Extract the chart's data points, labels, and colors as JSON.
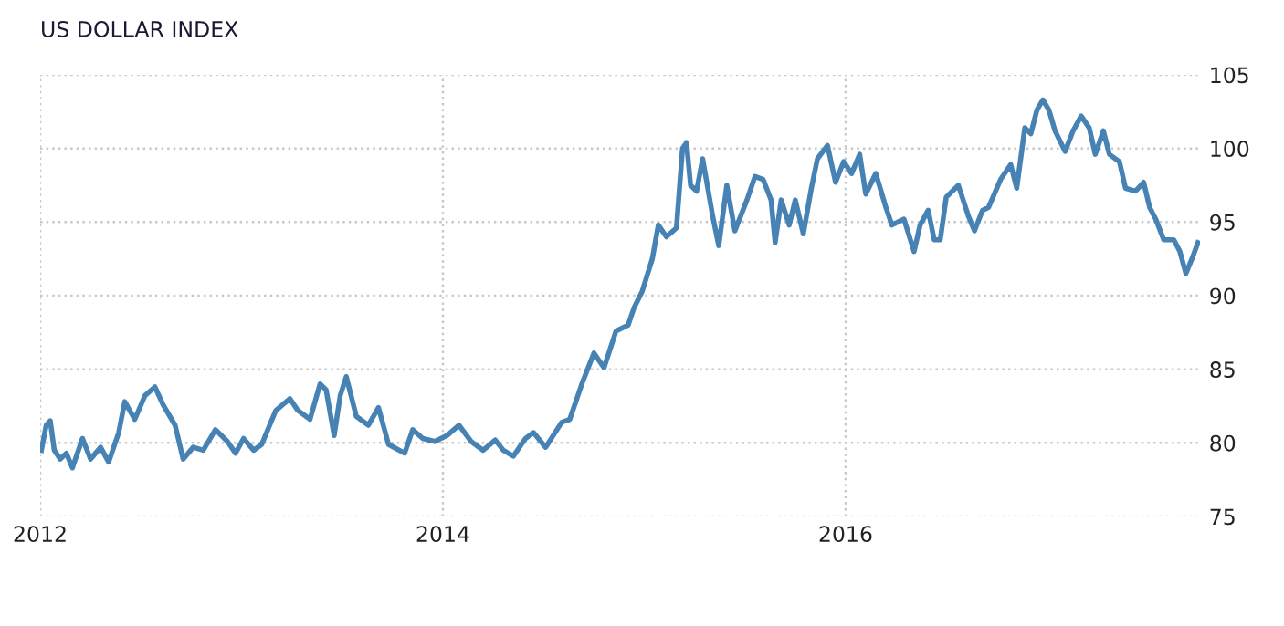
{
  "chart_data": {
    "type": "line",
    "title": "US DOLLAR INDEX",
    "xlim": [
      2012,
      2017.76
    ],
    "xticks": [
      2012,
      2014,
      2016
    ],
    "ylim": [
      75,
      105
    ],
    "yticks": [
      75,
      80,
      85,
      90,
      95,
      100,
      105
    ],
    "grid": true,
    "line_style": "solid",
    "series": [
      {
        "color": "#4682b4",
        "x": [
          2012.006,
          2012.03,
          2012.05,
          2012.07,
          2012.1,
          2012.13,
          2012.16,
          2012.21,
          2012.25,
          2012.3,
          2012.34,
          2012.39,
          2012.42,
          2012.47,
          2012.52,
          2012.57,
          2012.61,
          2012.67,
          2012.71,
          2012.76,
          2012.81,
          2012.87,
          2012.93,
          2012.97,
          2013.01,
          2013.06,
          2013.1,
          2013.17,
          2013.24,
          2013.28,
          2013.34,
          2013.39,
          2013.42,
          2013.46,
          2013.49,
          2013.52,
          2013.57,
          2013.63,
          2013.68,
          2013.73,
          2013.81,
          2013.85,
          2013.9,
          2013.96,
          2014.02,
          2014.08,
          2014.14,
          2014.2,
          2014.26,
          2014.3,
          2014.35,
          2014.41,
          2014.45,
          2014.51,
          2014.59,
          2014.63,
          2014.69,
          2014.75,
          2014.8,
          2014.86,
          2014.92,
          2014.95,
          2014.99,
          2015.04,
          2015.07,
          2015.11,
          2015.16,
          2015.19,
          2015.21,
          2015.23,
          2015.26,
          2015.29,
          2015.34,
          2015.37,
          2015.41,
          2015.45,
          2015.51,
          2015.55,
          2015.59,
          2015.63,
          2015.65,
          2015.68,
          2015.72,
          2015.75,
          2015.79,
          2015.83,
          2015.86,
          2015.91,
          2015.95,
          2015.99,
          2016.03,
          2016.07,
          2016.1,
          2016.15,
          2016.2,
          2016.23,
          2016.29,
          2016.34,
          2016.37,
          2016.41,
          2016.44,
          2016.47,
          2016.5,
          2016.56,
          2016.61,
          2016.64,
          2016.68,
          2016.71,
          2016.77,
          2016.82,
          2016.85,
          2016.89,
          2016.92,
          2016.95,
          2016.98,
          2017.01,
          2017.04,
          2017.09,
          2017.13,
          2017.17,
          2017.21,
          2017.24,
          2017.28,
          2017.31,
          2017.36,
          2017.39,
          2017.44,
          2017.48,
          2017.51,
          2017.54,
          2017.58,
          2017.63,
          2017.66,
          2017.69,
          2017.72,
          2017.75
        ],
        "values": [
          79.5,
          81.2,
          81.5,
          79.5,
          78.9,
          79.3,
          78.3,
          80.3,
          78.9,
          79.7,
          78.7,
          80.7,
          82.8,
          81.6,
          83.2,
          83.8,
          82.6,
          81.2,
          78.9,
          79.7,
          79.5,
          80.9,
          80.1,
          79.3,
          80.3,
          79.5,
          79.9,
          82.2,
          83.0,
          82.2,
          81.6,
          84.0,
          83.6,
          80.5,
          83.2,
          84.5,
          81.8,
          81.2,
          82.4,
          79.9,
          79.3,
          80.9,
          80.3,
          80.1,
          80.5,
          81.2,
          80.1,
          79.5,
          80.2,
          79.5,
          79.1,
          80.3,
          80.7,
          79.7,
          81.4,
          81.6,
          84.0,
          86.1,
          85.1,
          87.6,
          88.0,
          89.2,
          90.3,
          92.5,
          94.8,
          94.0,
          94.6,
          100.0,
          100.4,
          97.5,
          97.1,
          99.3,
          95.4,
          93.4,
          97.5,
          94.4,
          96.5,
          98.1,
          97.9,
          96.5,
          93.6,
          96.5,
          94.8,
          96.5,
          94.2,
          97.3,
          99.3,
          100.2,
          97.7,
          99.1,
          98.3,
          99.6,
          96.9,
          98.3,
          96.0,
          94.8,
          95.2,
          93.0,
          94.8,
          95.8,
          93.8,
          93.8,
          96.7,
          97.5,
          95.4,
          94.4,
          95.8,
          96.0,
          97.9,
          98.9,
          97.3,
          101.4,
          101.0,
          102.6,
          103.3,
          102.6,
          101.2,
          99.8,
          101.2,
          102.2,
          101.4,
          99.6,
          101.2,
          99.6,
          99.1,
          97.3,
          97.1,
          97.7,
          96.0,
          95.2,
          93.8,
          93.8,
          93.0,
          91.5,
          92.5,
          93.6
        ]
      }
    ]
  }
}
